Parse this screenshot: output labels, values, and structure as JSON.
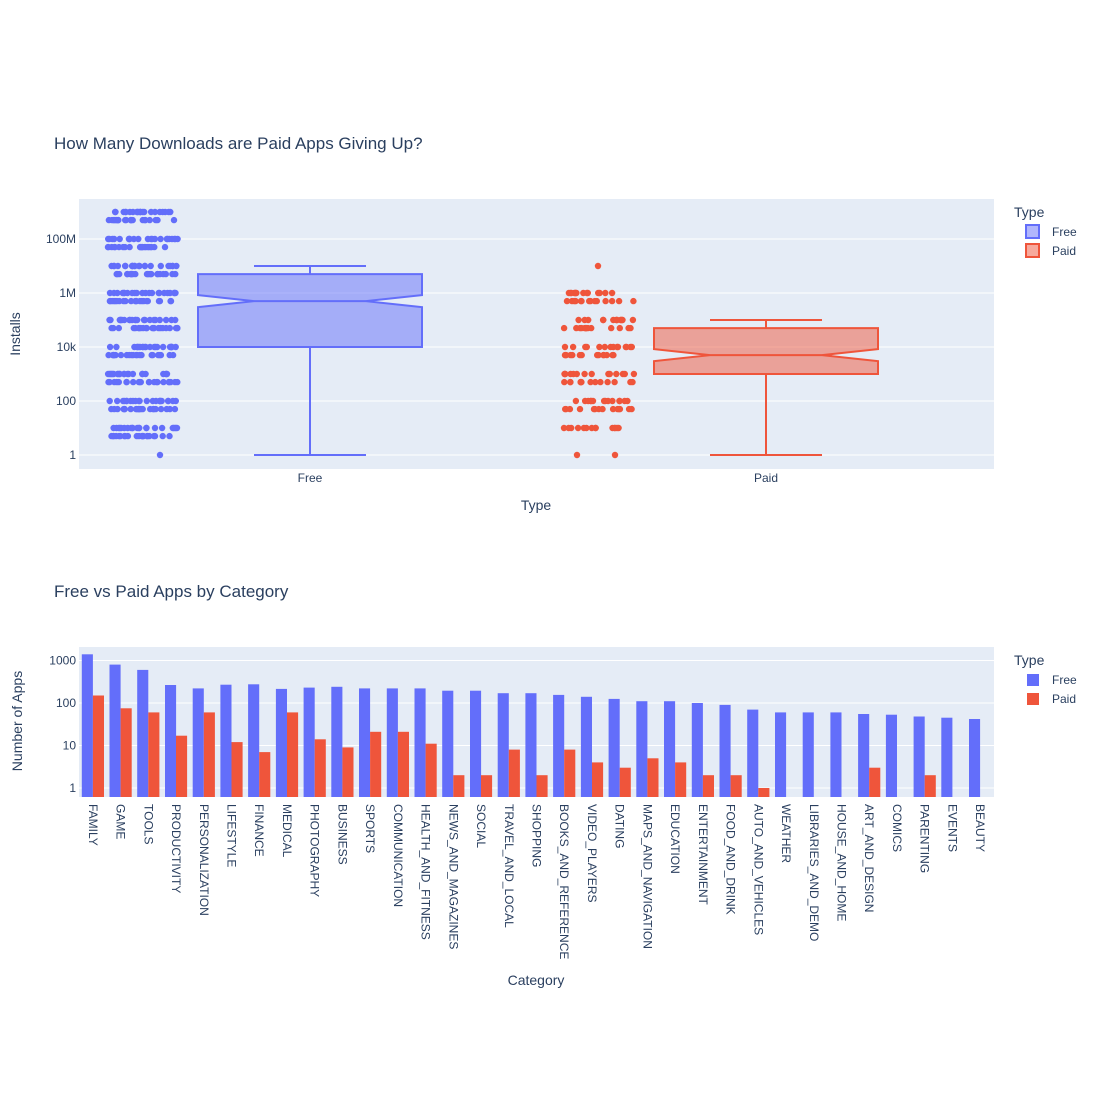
{
  "colors": {
    "free": "#636efa",
    "paid": "#ef553b",
    "plot_bg": "#e5ecf6",
    "grid": "#ffffff",
    "text": "#2a3f5f"
  },
  "chart_data": [
    {
      "type": "box",
      "title": "How Many Downloads are Paid Apps Giving Up?",
      "xlabel": "Type",
      "ylabel": "Installs",
      "yscale": "log",
      "ytick_values": [
        1,
        100,
        10000,
        1000000,
        100000000
      ],
      "ytick_labels": [
        "1",
        "100",
        "10k",
        "1M",
        "100M"
      ],
      "categories": [
        "Free",
        "Paid"
      ],
      "legend_title": "Type",
      "legend_position": "top-right",
      "grid": true,
      "boxes": [
        {
          "name": "Free",
          "min": 1,
          "q1": 10000,
          "median": 500000,
          "q3": 5000000,
          "max": 10000000,
          "notched": true,
          "point_levels": [
            1,
            5,
            10,
            50,
            100,
            500,
            1000,
            5000,
            10000,
            50000,
            100000,
            500000,
            1000000,
            5000000,
            10000000,
            50000000,
            100000000,
            500000000,
            1000000000
          ]
        },
        {
          "name": "Paid",
          "min": 1,
          "q1": 1000,
          "median": 5000,
          "q3": 50000,
          "max": 100000,
          "notched": true,
          "point_levels": [
            1,
            10,
            50,
            100,
            500,
            1000,
            5000,
            10000,
            50000,
            100000,
            500000,
            1000000,
            10000000
          ]
        }
      ]
    },
    {
      "type": "bar",
      "title": "Free vs Paid Apps by Category",
      "xlabel": "Category",
      "ylabel": "Number of Apps",
      "yscale": "log",
      "ytick_values": [
        1,
        10,
        100,
        1000
      ],
      "ytick_labels": [
        "1",
        "10",
        "100",
        "1000"
      ],
      "legend_title": "Type",
      "legend_position": "top-right",
      "grid": true,
      "categories": [
        "FAMILY",
        "GAME",
        "TOOLS",
        "PRODUCTIVITY",
        "PERSONALIZATION",
        "LIFESTYLE",
        "FINANCE",
        "MEDICAL",
        "PHOTOGRAPHY",
        "BUSINESS",
        "SPORTS",
        "COMMUNICATION",
        "HEALTH_AND_FITNESS",
        "NEWS_AND_MAGAZINES",
        "SOCIAL",
        "TRAVEL_AND_LOCAL",
        "SHOPPING",
        "BOOKS_AND_REFERENCE",
        "VIDEO_PLAYERS",
        "DATING",
        "MAPS_AND_NAVIGATION",
        "EDUCATION",
        "ENTERTAINMENT",
        "FOOD_AND_DRINK",
        "AUTO_AND_VEHICLES",
        "WEATHER",
        "LIBRARIES_AND_DEMO",
        "HOUSE_AND_HOME",
        "ART_AND_DESIGN",
        "COMICS",
        "PARENTING",
        "EVENTS",
        "BEAUTY"
      ],
      "series": [
        {
          "name": "Free",
          "values": [
            1400,
            800,
            600,
            265,
            220,
            270,
            275,
            215,
            230,
            240,
            220,
            220,
            220,
            195,
            195,
            170,
            170,
            155,
            140,
            125,
            110,
            110,
            100,
            90,
            70,
            60,
            60,
            60,
            55,
            53,
            48,
            45,
            42
          ]
        },
        {
          "name": "Paid",
          "values": [
            150,
            75,
            60,
            17,
            60,
            12,
            7,
            60,
            14,
            9,
            21,
            21,
            11,
            2,
            2,
            8,
            2,
            8,
            4,
            3,
            5,
            4,
            2,
            2,
            1,
            null,
            null,
            null,
            3,
            null,
            2,
            null,
            null
          ]
        }
      ]
    }
  ]
}
